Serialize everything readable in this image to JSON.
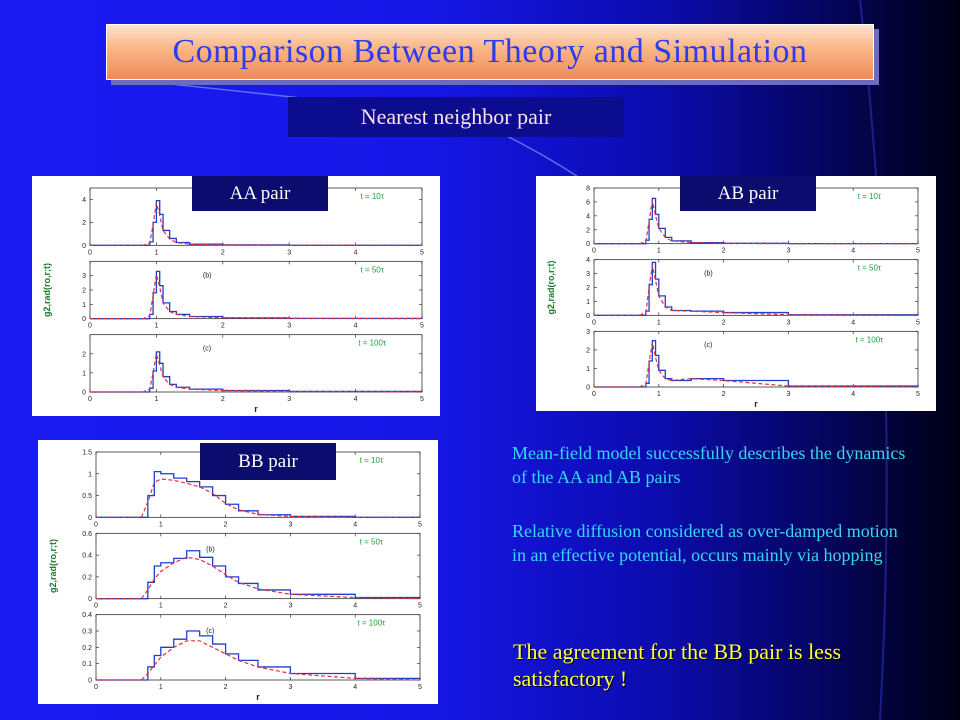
{
  "title": "Comparison Between Theory and Simulation",
  "subtitle": "Nearest neighbor pair",
  "panels": [
    {
      "tag": "AA pair",
      "ylabel": "g2,rad(ro,r;t)",
      "xlabel": "r"
    },
    {
      "tag": "AB pair",
      "ylabel": "g2,rad(ro,r;t)",
      "xlabel": "r"
    },
    {
      "tag": "BB pair",
      "ylabel": "g2,rad(ro,r;t)",
      "xlabel": "r"
    }
  ],
  "bullets": [
    "Mean-field model successfully describes the dynamics of the AA and AB pairs",
    "Relative diffusion considered as over-damped motion in an effective potential, occurs mainly via hopping",
    "The agreement for the BB pair is less satisfactory !"
  ],
  "colors": {
    "simulation": "#1f3fd0",
    "theory": "#e0303a",
    "annotation": "#1e9e3a"
  },
  "chart_data": [
    {
      "type": "line",
      "pair": "AA",
      "xlim": [
        0,
        5
      ],
      "xticks": [
        0,
        1,
        2,
        3,
        4,
        5
      ],
      "xlabel": "r",
      "ylabel": "g2,rad(ro,r;t)",
      "legend": "top-right",
      "subplots": [
        {
          "label": "",
          "time": "t = 10τ",
          "ylim": [
            0,
            5
          ],
          "yticks": [
            0,
            2,
            4
          ],
          "x": [
            0.8,
            0.9,
            0.95,
            1.0,
            1.05,
            1.1,
            1.2,
            1.3,
            1.5,
            2.0,
            3.0,
            5.0
          ],
          "series": [
            {
              "values": [
                0,
                0.3,
                2.0,
                3.9,
                2.7,
                1.3,
                0.6,
                0.25,
                0.1,
                0.04,
                0.01,
                0
              ]
            },
            {
              "values": [
                0,
                0.2,
                1.8,
                3.7,
                2.6,
                1.3,
                0.55,
                0.25,
                0.1,
                0.04,
                0.01,
                0
              ]
            }
          ]
        },
        {
          "label": "(b)",
          "time": "t = 50τ",
          "ylim": [
            0,
            4
          ],
          "yticks": [
            0,
            1,
            2,
            3
          ],
          "x": [
            0.8,
            0.9,
            0.95,
            1.0,
            1.05,
            1.1,
            1.2,
            1.3,
            1.5,
            2.0,
            3.0,
            5.0
          ],
          "series": [
            {
              "values": [
                0,
                0.3,
                1.8,
                3.3,
                2.3,
                1.1,
                0.5,
                0.3,
                0.15,
                0.05,
                0.02,
                0
              ]
            },
            {
              "values": [
                0,
                0.2,
                1.6,
                3.1,
                2.2,
                1.1,
                0.5,
                0.3,
                0.15,
                0.05,
                0.02,
                0
              ]
            }
          ]
        },
        {
          "label": "(c)",
          "time": "t = 100τ",
          "ylim": [
            0,
            3
          ],
          "yticks": [
            0,
            1,
            2
          ],
          "x": [
            0.8,
            0.9,
            0.95,
            1.0,
            1.05,
            1.1,
            1.2,
            1.3,
            1.5,
            2.0,
            3.0,
            5.0
          ],
          "series": [
            {
              "values": [
                0,
                0.2,
                1.1,
                2.1,
                1.5,
                0.8,
                0.4,
                0.25,
                0.15,
                0.08,
                0.03,
                0
              ]
            },
            {
              "values": [
                0,
                0.15,
                1.0,
                2.0,
                1.4,
                0.8,
                0.4,
                0.25,
                0.15,
                0.08,
                0.03,
                0
              ]
            }
          ]
        }
      ]
    },
    {
      "type": "line",
      "pair": "AB",
      "xlim": [
        0,
        5
      ],
      "xticks": [
        0,
        1,
        2,
        3,
        4,
        5
      ],
      "xlabel": "r",
      "ylabel": "g2,rad(ro,r;t)",
      "legend": "top-right",
      "subplots": [
        {
          "label": "",
          "time": "t = 10τ",
          "ylim": [
            0,
            8
          ],
          "yticks": [
            0,
            2,
            4,
            6,
            8
          ],
          "x": [
            0.7,
            0.8,
            0.85,
            0.9,
            0.95,
            1.0,
            1.1,
            1.2,
            1.5,
            2.0,
            3.0,
            5.0
          ],
          "series": [
            {
              "values": [
                0,
                0.5,
                3.5,
                6.5,
                4.2,
                2.2,
                0.9,
                0.4,
                0.15,
                0.05,
                0.01,
                0
              ]
            },
            {
              "values": [
                0,
                0.3,
                3.2,
                6.2,
                4.0,
                2.2,
                0.9,
                0.4,
                0.15,
                0.05,
                0.01,
                0
              ]
            }
          ]
        },
        {
          "label": "(b)",
          "time": "t = 50τ",
          "ylim": [
            0,
            4
          ],
          "yticks": [
            0,
            1,
            2,
            3,
            4
          ],
          "x": [
            0.7,
            0.8,
            0.85,
            0.9,
            0.95,
            1.0,
            1.1,
            1.2,
            1.5,
            2.0,
            3.0,
            5.0
          ],
          "series": [
            {
              "values": [
                0,
                0.3,
                2.2,
                3.8,
                2.6,
                1.4,
                0.6,
                0.35,
                0.3,
                0.2,
                0.04,
                0
              ]
            },
            {
              "values": [
                0,
                0.2,
                2.0,
                3.6,
                2.5,
                1.4,
                0.6,
                0.35,
                0.3,
                0.2,
                0.04,
                0
              ]
            }
          ]
        },
        {
          "label": "(c)",
          "time": "t = 100τ",
          "ylim": [
            0,
            3
          ],
          "yticks": [
            0,
            1,
            2,
            3
          ],
          "x": [
            0.7,
            0.8,
            0.85,
            0.9,
            0.95,
            1.0,
            1.1,
            1.2,
            1.5,
            2.0,
            3.0,
            5.0
          ],
          "series": [
            {
              "values": [
                0,
                0.2,
                1.4,
                2.5,
                1.7,
                0.9,
                0.45,
                0.35,
                0.45,
                0.35,
                0.05,
                0
              ]
            },
            {
              "values": [
                0,
                0.15,
                1.3,
                2.4,
                1.6,
                0.9,
                0.45,
                0.35,
                0.45,
                0.35,
                0.05,
                0
              ]
            }
          ]
        }
      ]
    },
    {
      "type": "line",
      "pair": "BB",
      "xlim": [
        0,
        5
      ],
      "xticks": [
        0,
        1,
        2,
        3,
        4,
        5
      ],
      "xlabel": "r",
      "ylabel": "g2,rad(ro,r;t)",
      "legend": "top-right",
      "subplots": [
        {
          "label": "",
          "time": "t = 10τ",
          "ylim": [
            0,
            1.5
          ],
          "yticks": [
            0,
            0.5,
            1,
            1.5
          ],
          "x": [
            0.7,
            0.8,
            0.9,
            1.0,
            1.2,
            1.4,
            1.6,
            1.8,
            2.0,
            2.2,
            2.5,
            3.0,
            4.0,
            5.0
          ],
          "series": [
            {
              "values": [
                0,
                0.5,
                1.05,
                1.0,
                0.9,
                0.82,
                0.7,
                0.5,
                0.3,
                0.15,
                0.06,
                0.02,
                0,
                0
              ]
            },
            {
              "values": [
                0,
                0.35,
                0.8,
                0.88,
                0.85,
                0.78,
                0.7,
                0.55,
                0.32,
                0.17,
                0.07,
                0.02,
                0,
                0
              ]
            }
          ]
        },
        {
          "label": "(b)",
          "time": "t = 50τ",
          "ylim": [
            0,
            0.6
          ],
          "yticks": [
            0,
            0.2,
            0.4,
            0.6
          ],
          "x": [
            0.7,
            0.8,
            0.9,
            1.0,
            1.2,
            1.4,
            1.6,
            1.8,
            2.0,
            2.2,
            2.5,
            3.0,
            4.0,
            5.0
          ],
          "series": [
            {
              "values": [
                0,
                0.15,
                0.3,
                0.33,
                0.37,
                0.44,
                0.38,
                0.3,
                0.2,
                0.14,
                0.08,
                0.04,
                0.01,
                0
              ]
            },
            {
              "values": [
                0,
                0.08,
                0.18,
                0.25,
                0.33,
                0.38,
                0.36,
                0.3,
                0.22,
                0.15,
                0.09,
                0.04,
                0.01,
                0
              ]
            }
          ]
        },
        {
          "label": "(c)",
          "time": "t = 100τ",
          "ylim": [
            0,
            0.4
          ],
          "yticks": [
            0,
            0.1,
            0.2,
            0.3,
            0.4
          ],
          "x": [
            0.7,
            0.8,
            0.9,
            1.0,
            1.2,
            1.4,
            1.6,
            1.8,
            2.0,
            2.2,
            2.5,
            3.0,
            4.0,
            5.0
          ],
          "series": [
            {
              "values": [
                0,
                0.08,
                0.15,
                0.2,
                0.25,
                0.3,
                0.27,
                0.22,
                0.16,
                0.12,
                0.08,
                0.04,
                0.01,
                0
              ]
            },
            {
              "values": [
                0,
                0.04,
                0.09,
                0.14,
                0.2,
                0.24,
                0.24,
                0.2,
                0.16,
                0.12,
                0.08,
                0.04,
                0.01,
                0
              ]
            }
          ]
        }
      ]
    }
  ]
}
